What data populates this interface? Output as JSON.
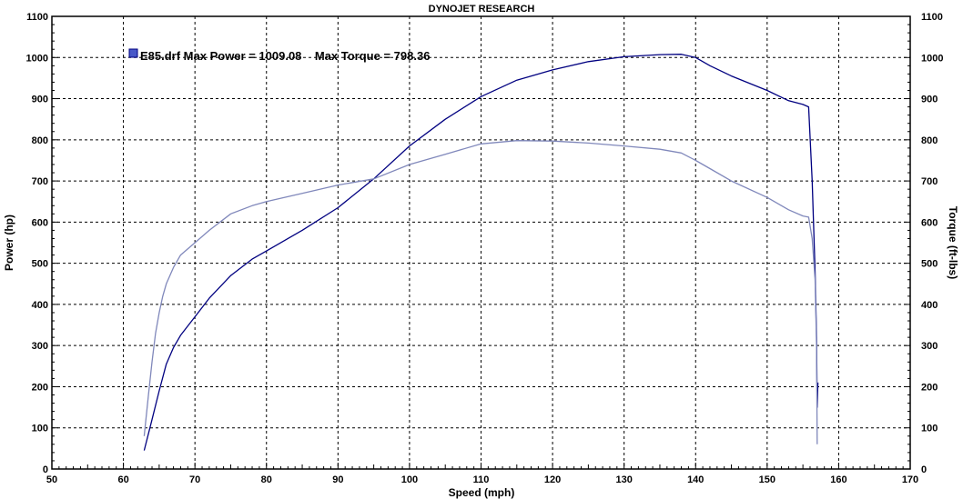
{
  "chart_data": {
    "type": "line",
    "title": "DYNOJET RESEARCH",
    "xlabel": "Speed (mph)",
    "ylabel_left": "Power (hp)",
    "ylabel_right": "Torque (ft-lbs)",
    "xlim": [
      50,
      170
    ],
    "ylim": [
      0,
      1100
    ],
    "x_ticks": [
      50,
      60,
      70,
      80,
      90,
      100,
      110,
      120,
      130,
      140,
      150,
      160,
      170
    ],
    "y_ticks": [
      0,
      100,
      200,
      300,
      400,
      500,
      600,
      700,
      800,
      900,
      1000,
      1100
    ],
    "grid": true,
    "legend": {
      "placement": "top-left",
      "text": "E85.drf Max Power = 1009.08    Max Torque = 798.36",
      "color": "#000080"
    },
    "series": [
      {
        "name": "Power",
        "color": "#000080",
        "x": [
          62.9,
          64,
          65,
          66,
          67,
          68,
          70,
          72,
          75,
          78,
          80,
          85,
          90,
          95,
          100,
          105,
          110,
          115,
          120,
          125,
          130,
          135,
          138,
          140,
          142,
          145,
          150,
          153,
          155,
          155.8,
          156.3,
          156.7,
          156.9,
          157,
          157.1
        ],
        "y": [
          45,
          120,
          190,
          255,
          295,
          325,
          370,
          415,
          470,
          510,
          530,
          580,
          635,
          705,
          785,
          850,
          905,
          945,
          970,
          990,
          1002,
          1007,
          1008,
          1000,
          980,
          955,
          920,
          895,
          886,
          880,
          700,
          480,
          320,
          150,
          210
        ]
      },
      {
        "name": "Torque",
        "color": "#8088bb",
        "x": [
          62.9,
          63.5,
          64,
          64.5,
          65,
          65.5,
          66,
          67,
          68,
          70,
          72,
          75,
          78,
          80,
          85,
          90,
          95,
          100,
          105,
          110,
          115,
          120,
          125,
          130,
          135,
          138,
          140,
          142,
          145,
          150,
          153,
          155,
          155.8,
          156.3,
          156.7,
          156.9,
          157
        ],
        "y": [
          80,
          180,
          260,
          330,
          380,
          420,
          450,
          490,
          520,
          550,
          580,
          620,
          640,
          650,
          670,
          690,
          705,
          740,
          765,
          790,
          798,
          797,
          792,
          785,
          777,
          768,
          750,
          730,
          700,
          660,
          630,
          615,
          612,
          560,
          460,
          300,
          60
        ]
      }
    ]
  }
}
